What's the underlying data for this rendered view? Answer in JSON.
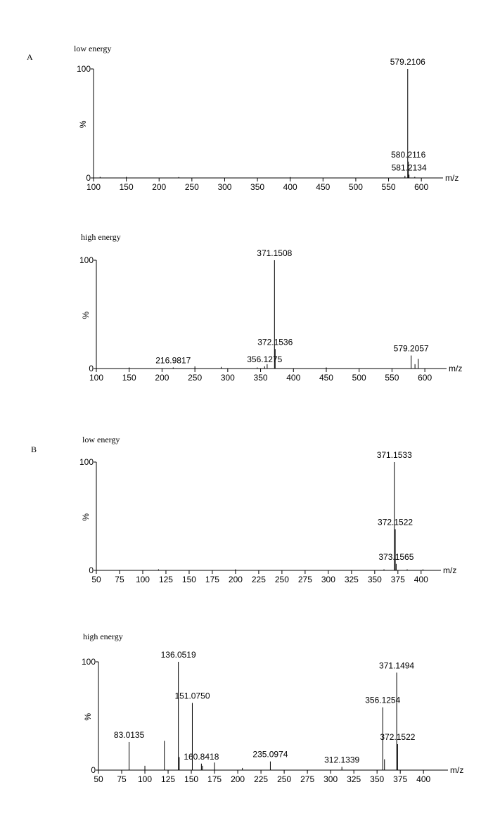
{
  "chart_data": [
    {
      "type": "bar",
      "panel": "A",
      "title": "low energy",
      "ylabel": "%",
      "xlabel": "m/z",
      "color": "#000000",
      "x": [
        110,
        150,
        230,
        400,
        575,
        579.2106,
        580.2116,
        581.2134,
        590
      ],
      "values": [
        1,
        1,
        0.8,
        0.8,
        2,
        100,
        15,
        3,
        1
      ],
      "annotations": [
        {
          "x": 579.2106,
          "label": "579.2106"
        },
        {
          "x": 580.2116,
          "label": "580.2116"
        },
        {
          "x": 581.2134,
          "label": "581.2134"
        }
      ],
      "xlim": [
        100,
        617
      ],
      "ylim": [
        0,
        100
      ],
      "xticks": [
        100,
        150,
        200,
        250,
        300,
        350,
        400,
        450,
        500,
        550,
        600
      ],
      "yticks": [
        0,
        100
      ]
    },
    {
      "type": "bar",
      "title": "high energy",
      "ylabel": "%",
      "xlabel": "m/z",
      "color": "#000000",
      "x": [
        150,
        216.9817,
        250,
        290,
        345,
        356.1275,
        360,
        371.1508,
        372.1536,
        450,
        579.2057,
        585,
        590
      ],
      "values": [
        1,
        1,
        2,
        1.5,
        1,
        2,
        4,
        100,
        18,
        1,
        12,
        4,
        9
      ],
      "annotations": [
        {
          "x": 216.9817,
          "label": "216.9817"
        },
        {
          "x": 356.1275,
          "label": "356.1275"
        },
        {
          "x": 371.1508,
          "label": "371.1508"
        },
        {
          "x": 372.1536,
          "label": "372.1536"
        },
        {
          "x": 579.2057,
          "label": "579.2057"
        }
      ],
      "xlim": [
        100,
        617
      ],
      "ylim": [
        0,
        100
      ],
      "xticks": [
        100,
        150,
        200,
        250,
        300,
        350,
        400,
        450,
        500,
        550,
        600
      ],
      "yticks": [
        0,
        100
      ]
    },
    {
      "type": "bar",
      "panel": "B",
      "title": "low energy",
      "ylabel": "%",
      "xlabel": "m/z",
      "color": "#000000",
      "x": [
        117,
        200,
        360,
        371.1533,
        372.1522,
        373.1565,
        385,
        402
      ],
      "values": [
        1,
        1,
        1,
        100,
        38,
        6,
        1,
        1
      ],
      "annotations": [
        {
          "x": 371.1533,
          "label": "371.1533"
        },
        {
          "x": 372.1522,
          "label": "372.1522"
        },
        {
          "x": 373.1565,
          "label": "373.1565"
        }
      ],
      "xlim": [
        50,
        410
      ],
      "ylim": [
        0,
        100
      ],
      "xticks": [
        50,
        75,
        100,
        125,
        150,
        175,
        200,
        225,
        250,
        275,
        300,
        325,
        350,
        375,
        400
      ],
      "yticks": [
        0,
        100
      ]
    },
    {
      "type": "bar",
      "title": "high energy",
      "ylabel": "%",
      "xlabel": "m/z",
      "color": "#000000",
      "x": [
        83.0135,
        100,
        121,
        136.0519,
        137,
        151.075,
        160.8418,
        162,
        175,
        205,
        235.0974,
        312.1339,
        356.1254,
        358,
        371.1494,
        372.1522
      ],
      "values": [
        26,
        4,
        27,
        100,
        12,
        62,
        6,
        4,
        7,
        2,
        8,
        3,
        58,
        10,
        90,
        24
      ],
      "annotations": [
        {
          "x": 83.0135,
          "label": "83.0135"
        },
        {
          "x": 136.0519,
          "label": "136.0519"
        },
        {
          "x": 151.075,
          "label": "151.0750"
        },
        {
          "x": 160.8418,
          "label": "160.8418"
        },
        {
          "x": 235.0974,
          "label": "235.0974"
        },
        {
          "x": 312.1339,
          "label": "312.1339"
        },
        {
          "x": 356.1254,
          "label": "356.1254"
        },
        {
          "x": 371.1494,
          "label": "371.1494"
        },
        {
          "x": 372.1522,
          "label": "372.1522"
        }
      ],
      "xlim": [
        50,
        415
      ],
      "ylim": [
        0,
        100
      ],
      "xticks": [
        50,
        75,
        100,
        125,
        150,
        175,
        200,
        225,
        250,
        275,
        300,
        325,
        350,
        375,
        400
      ],
      "yticks": [
        0,
        100
      ]
    }
  ]
}
